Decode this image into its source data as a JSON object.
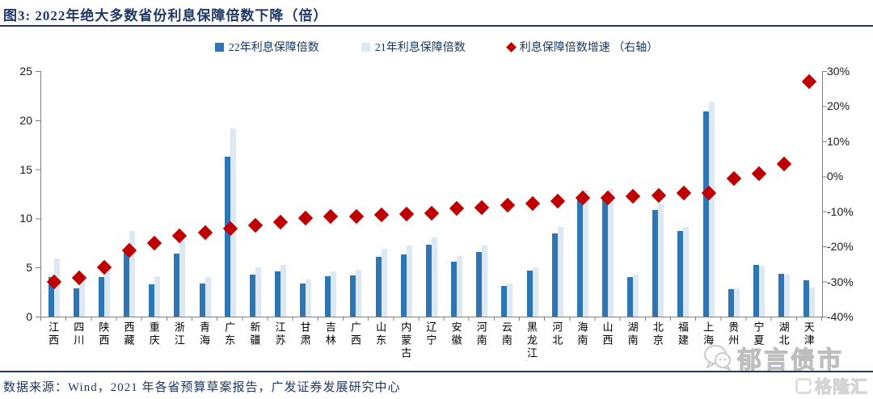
{
  "header": {
    "title": "图3: 2022年绝大多数省份利息保障倍数下降（倍）"
  },
  "legend": {
    "items": [
      {
        "label": "22年利息保障倍数",
        "marker": "square",
        "color": "#2e75b6"
      },
      {
        "label": "21年利息保障倍数",
        "marker": "square",
        "color": "#dce9f5"
      },
      {
        "label": "利息保障倍数增速 （右轴）",
        "marker": "diamond",
        "color": "#c00000"
      }
    ]
  },
  "chart_data": {
    "type": "bar",
    "title": "2022年绝大多数省份利息保障倍数下降（倍）",
    "xlabel": "",
    "ylabel": "",
    "grid": false,
    "legend_position": "top",
    "categories": [
      "江西",
      "四川",
      "陕西",
      "西藏",
      "重庆",
      "浙江",
      "青海",
      "广东",
      "新疆",
      "江苏",
      "甘肃",
      "吉林",
      "广西",
      "山东",
      "内蒙古",
      "辽宁",
      "安徽",
      "河南",
      "云南",
      "黑龙江",
      "河北",
      "海南",
      "山西",
      "湖南",
      "北京",
      "福建",
      "上海",
      "贵州",
      "宁夏",
      "湖北",
      "天津"
    ],
    "series": [
      {
        "name": "22年利息保障倍数",
        "type": "bar",
        "axis": "left",
        "color": "#2e75b6",
        "values": [
          4.0,
          2.9,
          4.0,
          6.9,
          3.3,
          6.4,
          3.4,
          16.3,
          4.3,
          4.6,
          3.4,
          4.1,
          4.2,
          6.1,
          6.3,
          7.3,
          5.6,
          6.6,
          3.1,
          4.7,
          8.5,
          12.1,
          12.1,
          4.0,
          10.9,
          8.7,
          20.9,
          2.8,
          5.3,
          4.4,
          3.7
        ]
      },
      {
        "name": "21年利息保障倍数",
        "type": "bar",
        "axis": "left",
        "color": "#dce9f5",
        "values": [
          5.9,
          3.8,
          5.5,
          8.7,
          4.1,
          7.7,
          4.0,
          19.2,
          5.0,
          5.3,
          3.8,
          4.6,
          4.8,
          6.9,
          7.2,
          8.1,
          6.2,
          7.2,
          3.4,
          5.0,
          9.1,
          12.9,
          13.0,
          4.3,
          11.5,
          9.1,
          21.9,
          2.9,
          5.2,
          4.3,
          3.0
        ]
      },
      {
        "name": "利息保障倍数增速（右轴）",
        "type": "scatter",
        "marker": "diamond",
        "axis": "right",
        "color": "#c00000",
        "unit": "%",
        "values": [
          -30,
          -29,
          -26,
          -21,
          -19,
          -17,
          -16,
          -15,
          -14,
          -13,
          -12,
          -11.5,
          -11.5,
          -11,
          -10.8,
          -10.5,
          -9.2,
          -8.8,
          -8.2,
          -7.7,
          -7,
          -6.1,
          -6.1,
          -5.6,
          -5.5,
          -4.8,
          -4.8,
          -0.5,
          0.8,
          3.5,
          27
        ]
      }
    ],
    "left_axis": {
      "min": 0,
      "max": 25,
      "step": 5,
      "ticks": [
        "25",
        "20",
        "15",
        "10",
        "5",
        "0"
      ]
    },
    "right_axis": {
      "min": -40,
      "max": 30,
      "step": 10,
      "ticks": [
        "30%",
        "20%",
        "10%",
        "0%",
        "-10%",
        "-20%",
        "-30%",
        "-40%"
      ]
    }
  },
  "footer": {
    "source": "数据来源：Wind，2021 年各省预算草案报告，广发证券发展研究中心"
  },
  "watermark": {
    "wechat_text": "郁言债市",
    "brand_text": "格隆汇"
  }
}
